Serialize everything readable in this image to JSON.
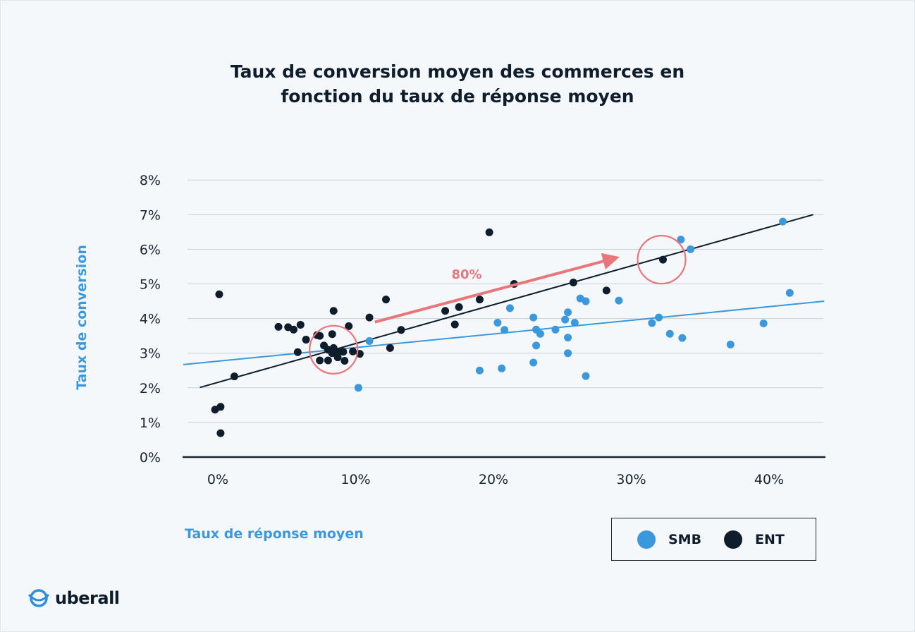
{
  "colors": {
    "smb": "#3b98dc",
    "ent": "#0f1c2b",
    "annotation": "#e8767a",
    "grid": "#c9d1d8",
    "axis": "#1a2530",
    "background": "#f4f8fb"
  },
  "chart_data": {
    "type": "scatter",
    "title": [
      "Taux de conversion moyen des commerces en",
      "fonction du taux de réponse moyen"
    ],
    "xlabel": "Taux de réponse moyen",
    "ylabel": "Taux de conversion",
    "xlim": [
      -2.5,
      44
    ],
    "ylim": [
      0,
      8
    ],
    "x_ticks": [
      0,
      10,
      20,
      30,
      40
    ],
    "x_tick_labels": [
      "0%",
      "10%",
      "20%",
      "30%",
      "40%"
    ],
    "y_ticks": [
      0,
      1,
      2,
      3,
      4,
      5,
      6,
      7,
      8
    ],
    "y_tick_labels": [
      "0%",
      "1%",
      "2%",
      "3%",
      "4%",
      "5%",
      "6%",
      "7%",
      "8%"
    ],
    "grid": true,
    "legend_position": "bottom-right",
    "series": [
      {
        "name": "SMB",
        "color": "#3b98dc",
        "points": [
          [
            10.2,
            2.0
          ],
          [
            11.0,
            3.35
          ],
          [
            19.0,
            2.5
          ],
          [
            20.6,
            2.56
          ],
          [
            20.3,
            3.88
          ],
          [
            20.8,
            3.67
          ],
          [
            21.2,
            4.3
          ],
          [
            22.9,
            4.03
          ],
          [
            22.9,
            2.73
          ],
          [
            23.1,
            3.68
          ],
          [
            23.1,
            3.22
          ],
          [
            23.4,
            3.56
          ],
          [
            24.5,
            3.68
          ],
          [
            25.2,
            3.97
          ],
          [
            25.4,
            4.18
          ],
          [
            25.4,
            3.45
          ],
          [
            25.4,
            3.0
          ],
          [
            25.9,
            3.88
          ],
          [
            26.3,
            4.58
          ],
          [
            26.7,
            4.5
          ],
          [
            26.7,
            2.34
          ],
          [
            29.1,
            4.52
          ],
          [
            31.5,
            3.87
          ],
          [
            32.0,
            4.03
          ],
          [
            32.8,
            3.56
          ],
          [
            33.7,
            3.44
          ],
          [
            33.6,
            6.28
          ],
          [
            34.3,
            6.0
          ],
          [
            37.2,
            3.25
          ],
          [
            39.6,
            3.86
          ],
          [
            41.0,
            6.8
          ],
          [
            41.5,
            4.74
          ]
        ]
      },
      {
        "name": "ENT",
        "color": "#0f1c2b",
        "points": [
          [
            0.1,
            4.7
          ],
          [
            -0.2,
            1.37
          ],
          [
            0.2,
            1.45
          ],
          [
            0.2,
            0.69
          ],
          [
            1.2,
            2.33
          ],
          [
            4.4,
            3.76
          ],
          [
            5.1,
            3.75
          ],
          [
            5.5,
            3.68
          ],
          [
            5.8,
            3.03
          ],
          [
            6.0,
            3.82
          ],
          [
            6.4,
            3.39
          ],
          [
            7.2,
            3.52
          ],
          [
            7.4,
            3.5
          ],
          [
            7.4,
            2.79
          ],
          [
            7.7,
            3.22
          ],
          [
            8.0,
            3.1
          ],
          [
            8.0,
            2.79
          ],
          [
            8.3,
            3.55
          ],
          [
            8.3,
            3.0
          ],
          [
            8.4,
            4.22
          ],
          [
            8.4,
            3.15
          ],
          [
            8.7,
            3.03
          ],
          [
            8.7,
            2.88
          ],
          [
            9.1,
            3.04
          ],
          [
            9.2,
            2.78
          ],
          [
            9.5,
            3.78
          ],
          [
            9.8,
            3.05
          ],
          [
            10.3,
            2.98
          ],
          [
            11.0,
            4.03
          ],
          [
            12.2,
            4.55
          ],
          [
            12.5,
            3.15
          ],
          [
            13.3,
            3.67
          ],
          [
            16.5,
            4.22
          ],
          [
            17.2,
            3.83
          ],
          [
            17.5,
            4.33
          ],
          [
            19.0,
            4.55
          ],
          [
            19.7,
            6.49
          ],
          [
            21.5,
            5.0
          ],
          [
            25.8,
            5.04
          ],
          [
            28.2,
            4.81
          ],
          [
            32.3,
            5.7
          ]
        ]
      }
    ],
    "trendlines": [
      {
        "series": "SMB",
        "from": [
          -2.5,
          2.67
        ],
        "to": [
          44,
          4.5
        ]
      },
      {
        "series": "ENT",
        "from": [
          -1.3,
          2.01
        ],
        "to": [
          43.2,
          7.0
        ]
      }
    ],
    "annotations": {
      "arrow_label": "80%",
      "arrow": {
        "from": [
          11.4,
          3.9
        ],
        "to": [
          28.6,
          5.72
        ]
      },
      "circles": [
        {
          "center": [
            8.4,
            3.1
          ]
        },
        {
          "center": [
            32.2,
            5.7
          ]
        }
      ]
    }
  },
  "legend": {
    "items": [
      {
        "label": "SMB",
        "color": "#3b98dc"
      },
      {
        "label": "ENT",
        "color": "#0f1c2b"
      }
    ]
  },
  "logo": {
    "text": "uberall",
    "icon": "globe-icon"
  }
}
